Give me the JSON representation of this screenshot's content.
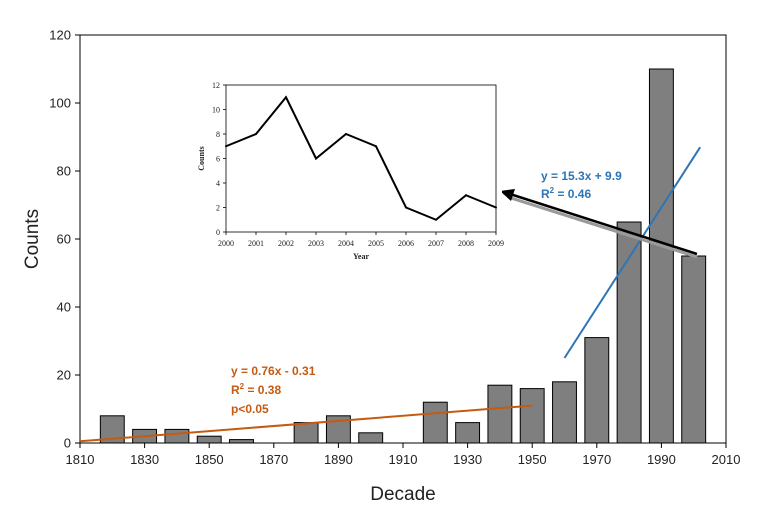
{
  "chart_data": [
    {
      "type": "bar",
      "x": [
        1820,
        1830,
        1840,
        1850,
        1860,
        1870,
        1880,
        1890,
        1900,
        1910,
        1920,
        1930,
        1940,
        1950,
        1960,
        1970,
        1980,
        1990,
        2000
      ],
      "values": [
        8,
        4,
        4,
        2,
        1,
        0,
        6,
        8,
        3,
        0,
        12,
        6,
        17,
        16,
        18,
        31,
        65,
        110,
        55
      ],
      "xlabel": "Decade",
      "ylabel": "Counts",
      "xlim": [
        1810,
        2010
      ],
      "ylim": [
        0,
        120
      ],
      "xticks": [
        1810,
        1830,
        1850,
        1870,
        1890,
        1910,
        1930,
        1950,
        1970,
        1990,
        2010
      ],
      "yticks": [
        0,
        20,
        40,
        60,
        80,
        100,
        120
      ],
      "bar_color": "#7f7f7f",
      "trendlines": [
        {
          "x_range": [
            1810,
            1950
          ],
          "y_range": [
            0.5,
            11
          ],
          "color": "#c55a11",
          "equation": "y = 0.76x - 0.31",
          "r2_prefix": "R",
          "r2_sup": "2",
          "r2_value": " = 0.38",
          "extra": "p<0.05"
        },
        {
          "x_range": [
            1960,
            2002
          ],
          "y_range": [
            25,
            87
          ],
          "color": "#2e75b6",
          "equation": "y = 15.3x + 9.9",
          "r2_prefix": "R",
          "r2_sup": "2",
          "r2_value": " = 0.46"
        }
      ]
    },
    {
      "type": "line",
      "x": [
        2000,
        2001,
        2002,
        2003,
        2004,
        2005,
        2006,
        2007,
        2008,
        2009
      ],
      "values": [
        7,
        8,
        11,
        6,
        8,
        7,
        2,
        1,
        3,
        2
      ],
      "xlabel": "Year",
      "ylabel": "Counts",
      "xlim": [
        2000,
        2009
      ],
      "ylim": [
        0,
        12
      ],
      "yticks": [
        0,
        2,
        4,
        6,
        8,
        10,
        12
      ]
    }
  ]
}
